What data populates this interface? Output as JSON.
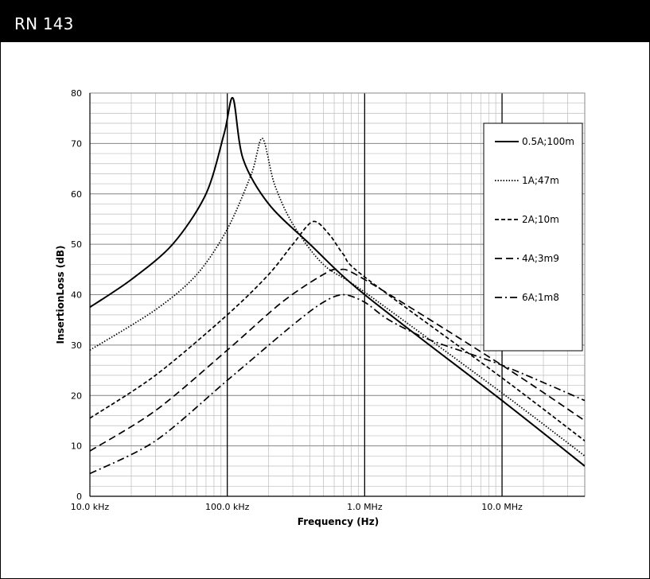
{
  "header": {
    "title": "RN 143"
  },
  "chart_data": {
    "type": "line",
    "title": "",
    "xlabel": "Frequency (Hz)",
    "ylabel": "InsertionLoss (dB)",
    "x_scale": "log",
    "xlim_hz": [
      10000,
      40000000
    ],
    "ylim": [
      0,
      80
    ],
    "x_ticks": [
      {
        "value": 10000,
        "label": "10.0 kHz"
      },
      {
        "value": 100000,
        "label": "100.0 kHz"
      },
      {
        "value": 1000000,
        "label": "1.0 MHz"
      },
      {
        "value": 10000000,
        "label": "10.0 MHz"
      }
    ],
    "y_ticks": [
      0,
      10,
      20,
      30,
      40,
      50,
      60,
      70,
      80
    ],
    "grid": true,
    "legend_position": "top-right",
    "series": [
      {
        "name": "0.5A;100m",
        "dash": "solid",
        "points": [
          [
            10000,
            37.5
          ],
          [
            20000,
            43
          ],
          [
            40000,
            50
          ],
          [
            70000,
            60
          ],
          [
            95000,
            72
          ],
          [
            110000,
            79
          ],
          [
            130000,
            67
          ],
          [
            200000,
            58
          ],
          [
            400000,
            50
          ],
          [
            1000000,
            40
          ],
          [
            10000000,
            19
          ],
          [
            40000000,
            6
          ]
        ]
      },
      {
        "name": "1A;47m",
        "dash": "dotted",
        "points": [
          [
            10000,
            29
          ],
          [
            30000,
            37
          ],
          [
            60000,
            44
          ],
          [
            100000,
            53
          ],
          [
            150000,
            64
          ],
          [
            180000,
            71
          ],
          [
            220000,
            62
          ],
          [
            300000,
            54
          ],
          [
            500000,
            46
          ],
          [
            1000000,
            40.5
          ],
          [
            10000000,
            20.5
          ],
          [
            40000000,
            8
          ]
        ]
      },
      {
        "name": "2A;10m",
        "dash": "dashed",
        "points": [
          [
            10000,
            15.5
          ],
          [
            30000,
            24
          ],
          [
            100000,
            36
          ],
          [
            200000,
            44
          ],
          [
            300000,
            50
          ],
          [
            420000,
            54.5
          ],
          [
            550000,
            52
          ],
          [
            700000,
            48
          ],
          [
            1000000,
            43.5
          ],
          [
            10000000,
            23.5
          ],
          [
            40000000,
            11
          ]
        ]
      },
      {
        "name": "4A;3m9",
        "dash": "long-dash",
        "points": [
          [
            10000,
            9
          ],
          [
            30000,
            17
          ],
          [
            100000,
            29
          ],
          [
            250000,
            38.5
          ],
          [
            500000,
            44
          ],
          [
            650000,
            45
          ],
          [
            1000000,
            43
          ],
          [
            10000000,
            26
          ],
          [
            40000000,
            15
          ]
        ]
      },
      {
        "name": "6A;1m8",
        "dash": "dash-dot",
        "points": [
          [
            10000,
            4.5
          ],
          [
            30000,
            11
          ],
          [
            100000,
            23
          ],
          [
            300000,
            34
          ],
          [
            500000,
            38.5
          ],
          [
            700000,
            40
          ],
          [
            1000000,
            38.5
          ],
          [
            1500000,
            35
          ],
          [
            3000000,
            31
          ],
          [
            10000000,
            26
          ],
          [
            40000000,
            19
          ]
        ]
      }
    ]
  },
  "styles": {
    "line_color": "#000000",
    "grid_color": "#bdbdbd",
    "header_bg": "#000000",
    "header_fg": "#ffffff"
  }
}
